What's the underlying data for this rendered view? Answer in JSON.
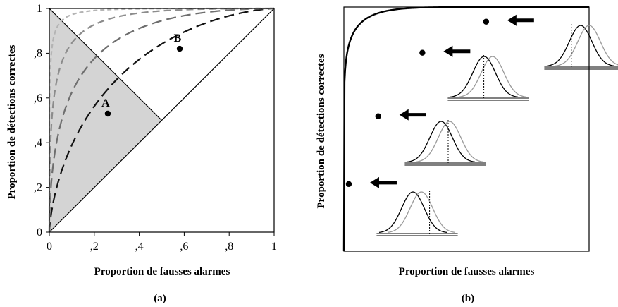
{
  "chart_data": [
    {
      "panel": "(a)",
      "type": "line",
      "xlabel": "Proportion de fausses alarmes",
      "ylabel": "Proportion de détections correctes",
      "xlim": [
        0,
        1
      ],
      "ylim": [
        0,
        1
      ],
      "x_ticks": [
        "0",
        ",2",
        ",4",
        ",6",
        ",8",
        "1"
      ],
      "y_ticks": [
        "0",
        ",2",
        ",4",
        ",6",
        ",8",
        "1"
      ],
      "grid": false,
      "shaded_region": {
        "vertices": [
          [
            0,
            0
          ],
          [
            0,
            1
          ],
          [
            0.5,
            0.5
          ]
        ],
        "color": "#d4d4d4"
      },
      "reference_lines": [
        {
          "from": [
            0,
            0
          ],
          "to": [
            1,
            1
          ]
        },
        {
          "from": [
            0,
            1
          ],
          "to": [
            0.5,
            0.5
          ]
        }
      ],
      "series": [
        {
          "dprime": 1.0,
          "color": "#111111",
          "style": "long-dash"
        },
        {
          "dprime": 1.6,
          "color": "#6e6e6e",
          "style": "long-dash"
        },
        {
          "dprime": 2.3,
          "color": "#8c8c8c",
          "style": "dash"
        },
        {
          "dprime": 3.2,
          "color": "#b4b4b4",
          "style": "short-dash"
        }
      ],
      "points": [
        {
          "label": "A",
          "x": 0.26,
          "y": 0.53
        },
        {
          "label": "B",
          "x": 0.58,
          "y": 0.82
        }
      ]
    },
    {
      "panel": "(b)",
      "type": "line",
      "xlabel": "Proportion de fausses alarmes",
      "ylabel": "Proportion de détections correctes",
      "xlim": [
        0,
        1
      ],
      "ylim": [
        0,
        1
      ],
      "grid": false,
      "curve": {
        "exponent": 0.1
      },
      "points": [
        {
          "x": 0.02,
          "y": 0.275
        },
        {
          "x": 0.14,
          "y": 0.553
        },
        {
          "x": 0.32,
          "y": 0.813
        },
        {
          "x": 0.58,
          "y": 0.94
        }
      ],
      "distribution_insets": [
        {
          "criterion_offset": 1.1
        },
        {
          "criterion_offset": 0.25
        },
        {
          "criterion_offset": -0.4
        },
        {
          "criterion_offset": -1.2
        }
      ],
      "arrows": "pointing left, one per point"
    }
  ],
  "panel_labels": {
    "a": "(a)",
    "b": "(b)"
  }
}
